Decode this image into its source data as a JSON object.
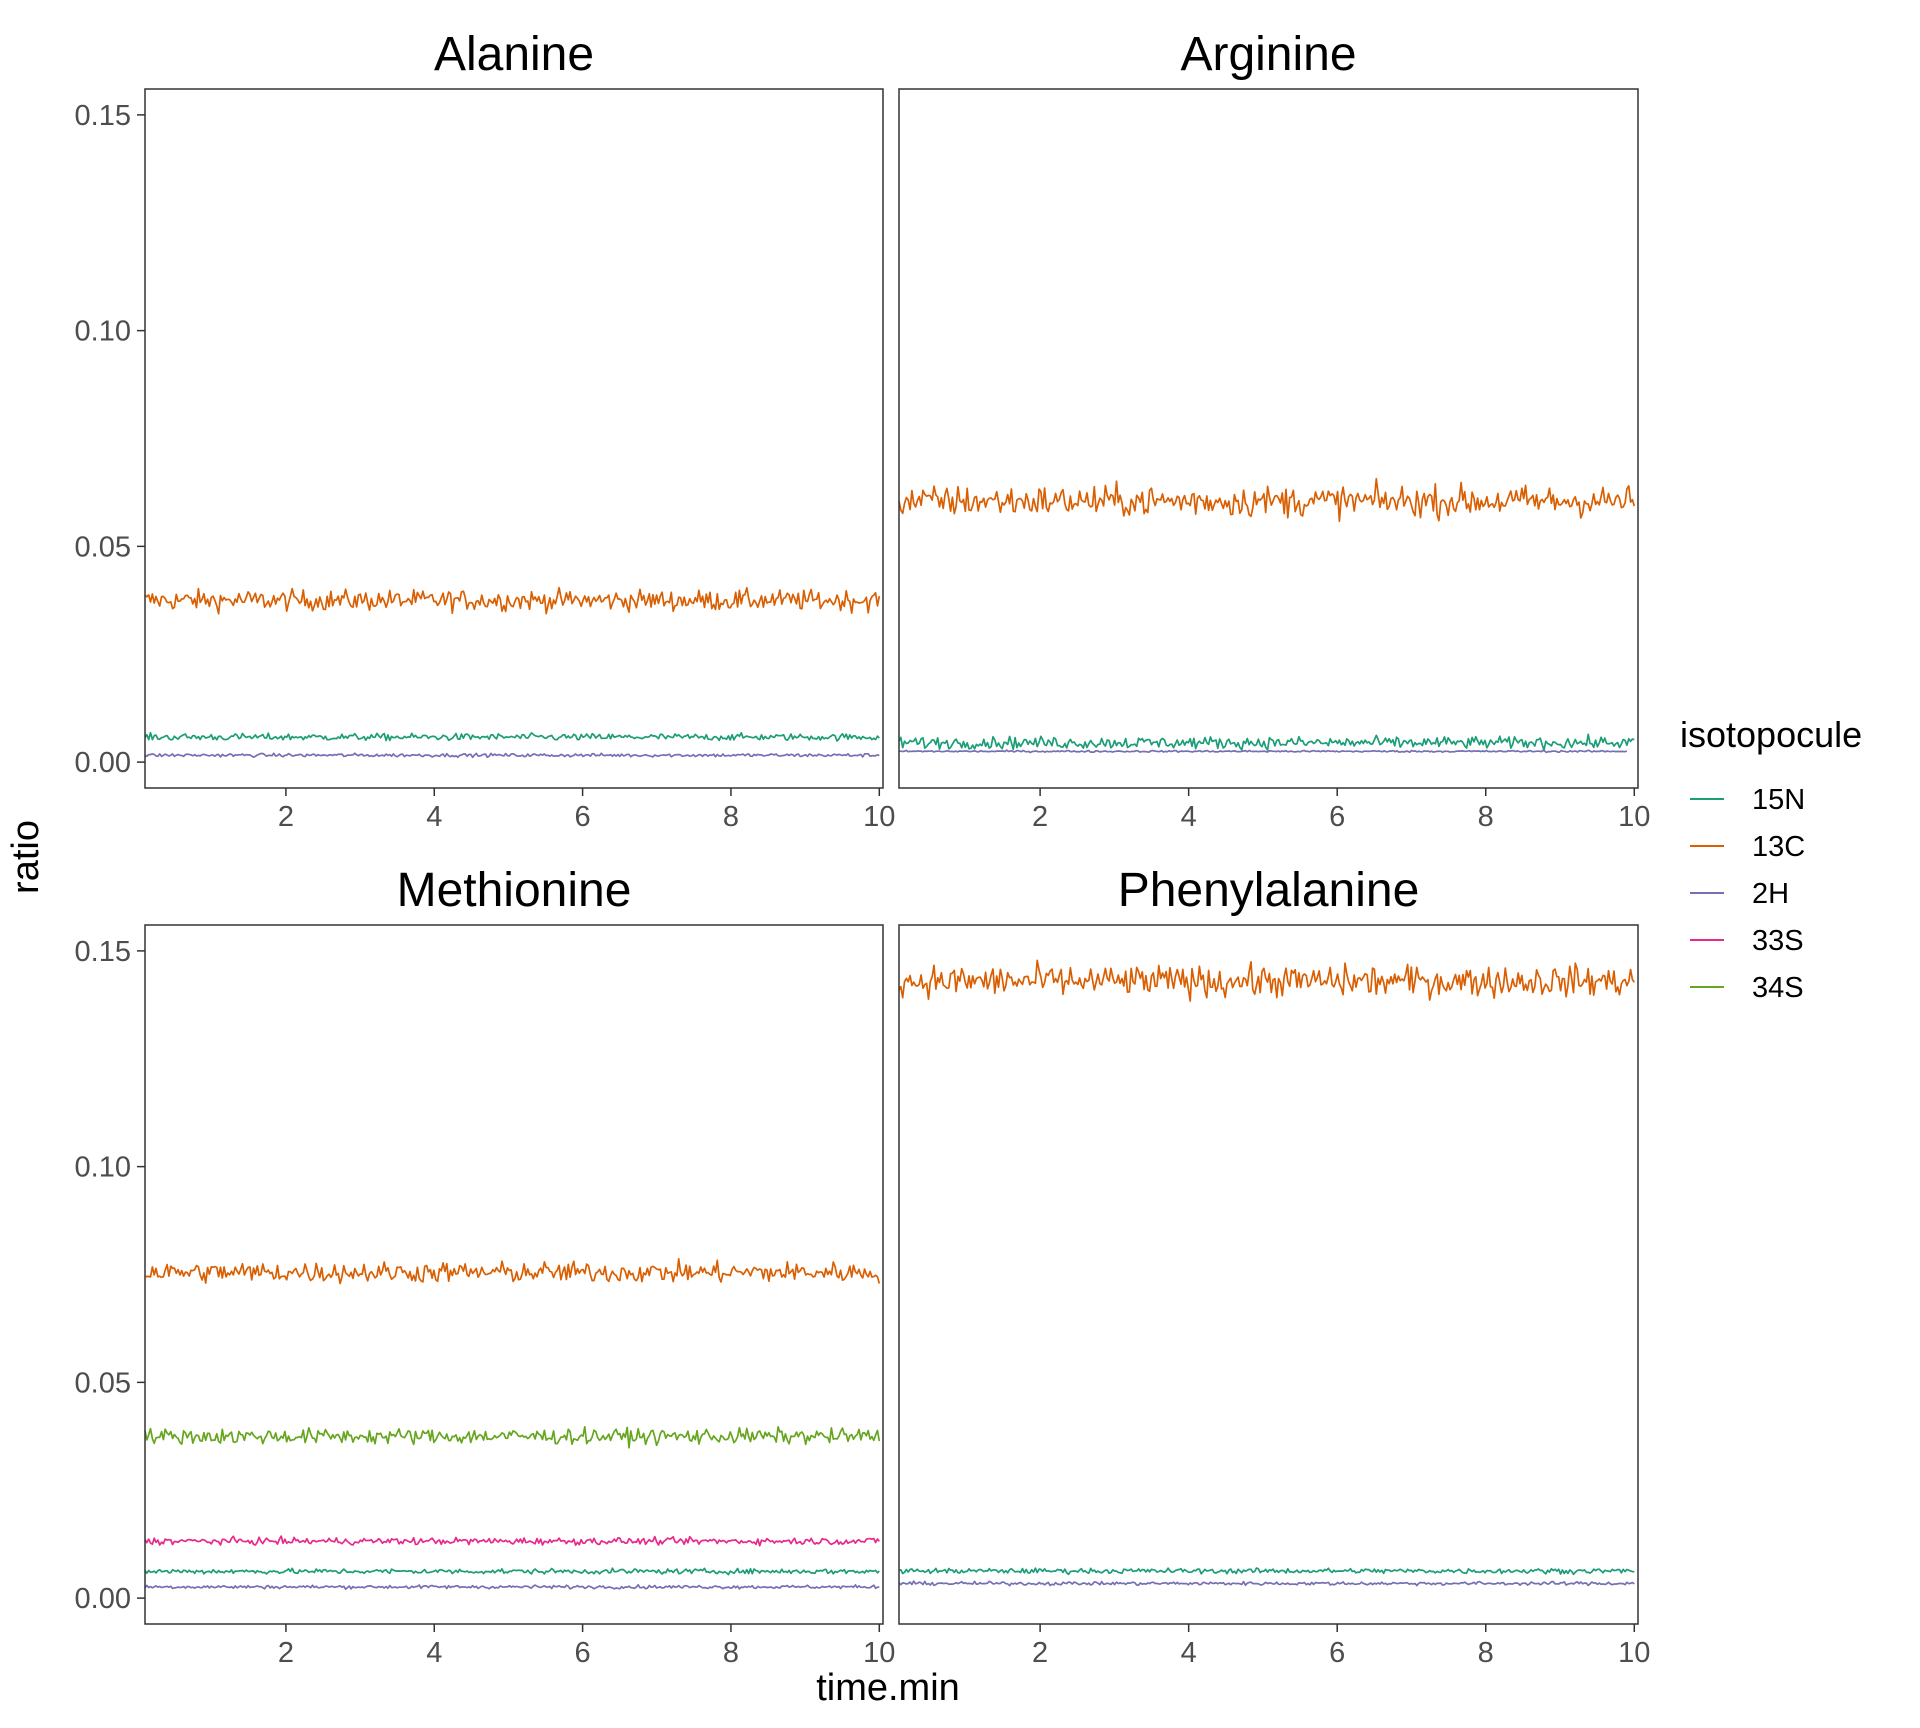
{
  "chart_data": {
    "type": "line",
    "facet_layout": "2x2",
    "xlabel": "time.min",
    "ylabel": "ratio",
    "xlim": [
      0.1,
      10.05
    ],
    "ylim": [
      -0.006,
      0.156
    ],
    "x_ticks": [
      2,
      4,
      6,
      8,
      10
    ],
    "x_tick_labels": [
      "2",
      "4",
      "6",
      "8",
      "10"
    ],
    "y_ticks": [
      0.0,
      0.05,
      0.1,
      0.15
    ],
    "y_tick_labels": [
      "0.00",
      "0.05",
      "0.10",
      "0.15"
    ],
    "grid": false,
    "legend": {
      "title": "isotopocule",
      "position": "right",
      "entries": [
        {
          "label": "15N",
          "color": "#1b9e77"
        },
        {
          "label": "13C",
          "color": "#d95f02"
        },
        {
          "label": "2H",
          "color": "#7570b3"
        },
        {
          "label": "33S",
          "color": "#e7298a"
        },
        {
          "label": "34S",
          "color": "#66a61e"
        }
      ]
    },
    "n_points_per_series": 400,
    "panels": [
      {
        "title": "Alanine",
        "series": [
          {
            "name": "13C",
            "mean": 0.0375,
            "noise": 0.0012,
            "x_end": 10.0
          },
          {
            "name": "15N",
            "mean": 0.0058,
            "noise": 0.0004,
            "x_end": 10.0
          },
          {
            "name": "2H",
            "mean": 0.0016,
            "noise": 0.0002,
            "x_end": 10.0
          }
        ]
      },
      {
        "title": "Arginine",
        "series": [
          {
            "name": "13C",
            "mean": 0.0605,
            "noise": 0.0018,
            "x_end": 10.0
          },
          {
            "name": "15N",
            "mean": 0.0045,
            "noise": 0.0007,
            "x_end": 10.0
          },
          {
            "name": "2H",
            "mean": 0.0025,
            "noise": 0.0001,
            "x_end": 9.9
          }
        ]
      },
      {
        "title": "Methionine",
        "series": [
          {
            "name": "13C",
            "mean": 0.0755,
            "noise": 0.0012,
            "x_end": 10.0
          },
          {
            "name": "34S",
            "mean": 0.0375,
            "noise": 0.0009,
            "x_end": 10.0
          },
          {
            "name": "33S",
            "mean": 0.0132,
            "noise": 0.0004,
            "x_end": 10.0
          },
          {
            "name": "15N",
            "mean": 0.0062,
            "noise": 0.0003,
            "x_end": 10.0
          },
          {
            "name": "2H",
            "mean": 0.0026,
            "noise": 0.0002,
            "x_end": 10.0
          }
        ]
      },
      {
        "title": "Phenylalanine",
        "series": [
          {
            "name": "13C",
            "mean": 0.143,
            "noise": 0.0018,
            "x_end": 10.0
          },
          {
            "name": "15N",
            "mean": 0.0063,
            "noise": 0.0003,
            "x_end": 10.0
          },
          {
            "name": "2H",
            "mean": 0.0034,
            "noise": 0.0002,
            "x_end": 10.0
          }
        ]
      }
    ]
  }
}
